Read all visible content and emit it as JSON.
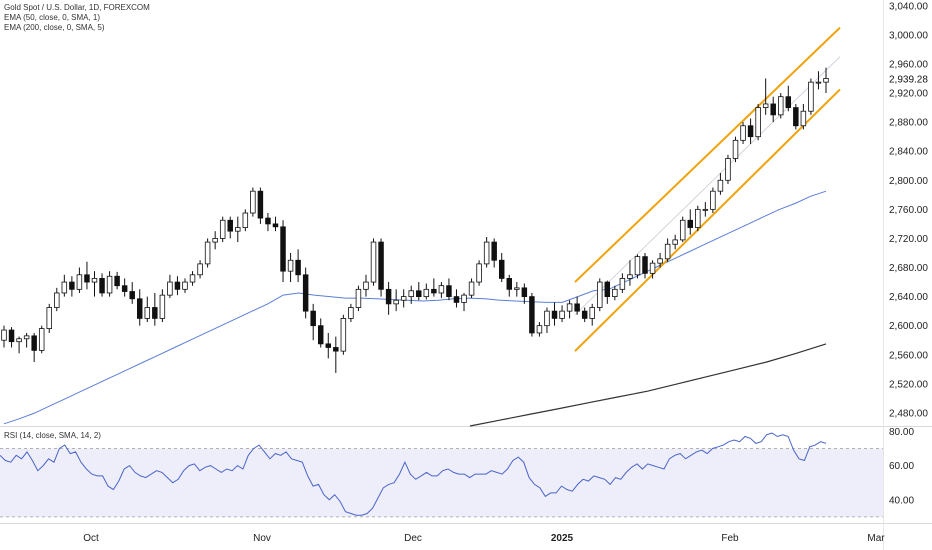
{
  "legend": {
    "main": "Gold Spot / U.S. Dollar, 1D, FOREXCOM",
    "ema50": "EMA (50, close, 0, SMA, 1)",
    "ema200": "EMA (200, close, 0, SMA, 5)",
    "rsi": "RSI (14, close, SMA, 14, 2)"
  },
  "colors": {
    "candle_up": "#ffffff",
    "candle_down": "#111111",
    "candle_outline": "#111111",
    "ema50": "#5b7fd6",
    "ema200": "#333333",
    "channel": "#f0a20a",
    "rsi_line": "#4a64c8",
    "rsi_band": "#eeeefb"
  },
  "chart_data": [
    {
      "type": "candlestick",
      "title": "Gold Spot / U.S. Dollar, 1D, FOREXCOM",
      "x_ticks": [
        "Oct",
        "Nov",
        "Dec",
        "2025",
        "Feb",
        "Mar"
      ],
      "y_ticks": [
        3040,
        3000,
        2960,
        2920,
        2880,
        2840,
        2800,
        2760,
        2720,
        2680,
        2640,
        2600,
        2560,
        2520,
        2480
      ],
      "ylim": [
        2462,
        3048
      ],
      "y_tick_labels": [
        "3,040.00",
        "3,000.00",
        "2,960.00",
        "2,920.00",
        "2,880.00",
        "2,840.00",
        "2,800.00",
        "2,760.00",
        "2,720.00",
        "2,680.00",
        "2,640.00",
        "2,600.00",
        "2,560.00",
        "2,520.00",
        "2,480.00"
      ],
      "last_price": 2939.28,
      "last_price_label": "2,939.28",
      "candles": [
        {
          "o": 2580,
          "h": 2600,
          "l": 2570,
          "c": 2594
        },
        {
          "o": 2594,
          "h": 2598,
          "l": 2570,
          "c": 2578
        },
        {
          "o": 2578,
          "h": 2585,
          "l": 2562,
          "c": 2582
        },
        {
          "o": 2582,
          "h": 2590,
          "l": 2570,
          "c": 2586
        },
        {
          "o": 2586,
          "h": 2590,
          "l": 2550,
          "c": 2566
        },
        {
          "o": 2566,
          "h": 2600,
          "l": 2562,
          "c": 2596
        },
        {
          "o": 2596,
          "h": 2630,
          "l": 2590,
          "c": 2625
        },
        {
          "o": 2625,
          "h": 2652,
          "l": 2620,
          "c": 2645
        },
        {
          "o": 2645,
          "h": 2670,
          "l": 2640,
          "c": 2660
        },
        {
          "o": 2660,
          "h": 2668,
          "l": 2640,
          "c": 2650
        },
        {
          "o": 2650,
          "h": 2680,
          "l": 2645,
          "c": 2670
        },
        {
          "o": 2670,
          "h": 2688,
          "l": 2650,
          "c": 2660
        },
        {
          "o": 2660,
          "h": 2675,
          "l": 2640,
          "c": 2665
        },
        {
          "o": 2665,
          "h": 2672,
          "l": 2640,
          "c": 2645
        },
        {
          "o": 2645,
          "h": 2675,
          "l": 2640,
          "c": 2668
        },
        {
          "o": 2668,
          "h": 2674,
          "l": 2650,
          "c": 2655
        },
        {
          "o": 2655,
          "h": 2665,
          "l": 2640,
          "c": 2647
        },
        {
          "o": 2647,
          "h": 2660,
          "l": 2630,
          "c": 2637
        },
        {
          "o": 2637,
          "h": 2650,
          "l": 2600,
          "c": 2610
        },
        {
          "o": 2610,
          "h": 2640,
          "l": 2605,
          "c": 2625
        },
        {
          "o": 2625,
          "h": 2645,
          "l": 2600,
          "c": 2610
        },
        {
          "o": 2610,
          "h": 2650,
          "l": 2605,
          "c": 2642
        },
        {
          "o": 2642,
          "h": 2670,
          "l": 2638,
          "c": 2660
        },
        {
          "o": 2660,
          "h": 2668,
          "l": 2642,
          "c": 2650
        },
        {
          "o": 2650,
          "h": 2665,
          "l": 2645,
          "c": 2660
        },
        {
          "o": 2660,
          "h": 2675,
          "l": 2655,
          "c": 2670
        },
        {
          "o": 2670,
          "h": 2690,
          "l": 2665,
          "c": 2685
        },
        {
          "o": 2685,
          "h": 2720,
          "l": 2680,
          "c": 2715
        },
        {
          "o": 2715,
          "h": 2730,
          "l": 2705,
          "c": 2720
        },
        {
          "o": 2720,
          "h": 2750,
          "l": 2715,
          "c": 2745
        },
        {
          "o": 2745,
          "h": 2750,
          "l": 2720,
          "c": 2730
        },
        {
          "o": 2730,
          "h": 2750,
          "l": 2715,
          "c": 2735
        },
        {
          "o": 2735,
          "h": 2760,
          "l": 2730,
          "c": 2755
        },
        {
          "o": 2755,
          "h": 2790,
          "l": 2750,
          "c": 2785
        },
        {
          "o": 2785,
          "h": 2790,
          "l": 2740,
          "c": 2748
        },
        {
          "o": 2748,
          "h": 2755,
          "l": 2730,
          "c": 2740
        },
        {
          "o": 2740,
          "h": 2750,
          "l": 2730,
          "c": 2736
        },
        {
          "o": 2736,
          "h": 2745,
          "l": 2660,
          "c": 2675
        },
        {
          "o": 2675,
          "h": 2700,
          "l": 2660,
          "c": 2690
        },
        {
          "o": 2690,
          "h": 2705,
          "l": 2660,
          "c": 2670
        },
        {
          "o": 2670,
          "h": 2680,
          "l": 2610,
          "c": 2620
        },
        {
          "o": 2620,
          "h": 2630,
          "l": 2580,
          "c": 2600
        },
        {
          "o": 2600,
          "h": 2610,
          "l": 2570,
          "c": 2575
        },
        {
          "o": 2575,
          "h": 2590,
          "l": 2555,
          "c": 2570
        },
        {
          "o": 2570,
          "h": 2585,
          "l": 2535,
          "c": 2565
        },
        {
          "o": 2565,
          "h": 2615,
          "l": 2560,
          "c": 2610
        },
        {
          "o": 2610,
          "h": 2630,
          "l": 2605,
          "c": 2625
        },
        {
          "o": 2625,
          "h": 2655,
          "l": 2620,
          "c": 2650
        },
        {
          "o": 2650,
          "h": 2670,
          "l": 2640,
          "c": 2660
        },
        {
          "o": 2660,
          "h": 2720,
          "l": 2655,
          "c": 2715
        },
        {
          "o": 2715,
          "h": 2720,
          "l": 2640,
          "c": 2650
        },
        {
          "o": 2650,
          "h": 2660,
          "l": 2615,
          "c": 2630
        },
        {
          "o": 2630,
          "h": 2650,
          "l": 2620,
          "c": 2635
        },
        {
          "o": 2635,
          "h": 2650,
          "l": 2625,
          "c": 2640
        },
        {
          "o": 2640,
          "h": 2655,
          "l": 2630,
          "c": 2648
        },
        {
          "o": 2648,
          "h": 2660,
          "l": 2635,
          "c": 2640
        },
        {
          "o": 2640,
          "h": 2658,
          "l": 2636,
          "c": 2650
        },
        {
          "o": 2650,
          "h": 2665,
          "l": 2640,
          "c": 2645
        },
        {
          "o": 2645,
          "h": 2660,
          "l": 2638,
          "c": 2655
        },
        {
          "o": 2655,
          "h": 2665,
          "l": 2635,
          "c": 2640
        },
        {
          "o": 2640,
          "h": 2650,
          "l": 2625,
          "c": 2632
        },
        {
          "o": 2632,
          "h": 2645,
          "l": 2620,
          "c": 2642
        },
        {
          "o": 2642,
          "h": 2665,
          "l": 2638,
          "c": 2660
        },
        {
          "o": 2660,
          "h": 2690,
          "l": 2655,
          "c": 2685
        },
        {
          "o": 2685,
          "h": 2722,
          "l": 2680,
          "c": 2715
        },
        {
          "o": 2715,
          "h": 2720,
          "l": 2680,
          "c": 2690
        },
        {
          "o": 2690,
          "h": 2700,
          "l": 2660,
          "c": 2665
        },
        {
          "o": 2665,
          "h": 2670,
          "l": 2640,
          "c": 2650
        },
        {
          "o": 2650,
          "h": 2660,
          "l": 2640,
          "c": 2652
        },
        {
          "o": 2652,
          "h": 2658,
          "l": 2630,
          "c": 2640
        },
        {
          "o": 2640,
          "h": 2645,
          "l": 2585,
          "c": 2590
        },
        {
          "o": 2590,
          "h": 2605,
          "l": 2585,
          "c": 2600
        },
        {
          "o": 2600,
          "h": 2625,
          "l": 2590,
          "c": 2620
        },
        {
          "o": 2620,
          "h": 2632,
          "l": 2600,
          "c": 2610
        },
        {
          "o": 2610,
          "h": 2628,
          "l": 2605,
          "c": 2620
        },
        {
          "o": 2620,
          "h": 2635,
          "l": 2610,
          "c": 2630
        },
        {
          "o": 2630,
          "h": 2640,
          "l": 2615,
          "c": 2620
        },
        {
          "o": 2620,
          "h": 2625,
          "l": 2605,
          "c": 2610
        },
        {
          "o": 2610,
          "h": 2630,
          "l": 2600,
          "c": 2625
        },
        {
          "o": 2625,
          "h": 2665,
          "l": 2620,
          "c": 2660
        },
        {
          "o": 2660,
          "h": 2662,
          "l": 2630,
          "c": 2640
        },
        {
          "o": 2640,
          "h": 2655,
          "l": 2635,
          "c": 2650
        },
        {
          "o": 2650,
          "h": 2672,
          "l": 2645,
          "c": 2665
        },
        {
          "o": 2665,
          "h": 2690,
          "l": 2655,
          "c": 2670
        },
        {
          "o": 2670,
          "h": 2698,
          "l": 2665,
          "c": 2695
        },
        {
          "o": 2695,
          "h": 2700,
          "l": 2665,
          "c": 2672
        },
        {
          "o": 2672,
          "h": 2690,
          "l": 2665,
          "c": 2686
        },
        {
          "o": 2686,
          "h": 2700,
          "l": 2680,
          "c": 2692
        },
        {
          "o": 2692,
          "h": 2720,
          "l": 2688,
          "c": 2712
        },
        {
          "o": 2712,
          "h": 2725,
          "l": 2705,
          "c": 2718
        },
        {
          "o": 2718,
          "h": 2750,
          "l": 2715,
          "c": 2745
        },
        {
          "o": 2745,
          "h": 2760,
          "l": 2725,
          "c": 2735
        },
        {
          "o": 2735,
          "h": 2765,
          "l": 2730,
          "c": 2760
        },
        {
          "o": 2760,
          "h": 2770,
          "l": 2750,
          "c": 2760
        },
        {
          "o": 2760,
          "h": 2790,
          "l": 2755,
          "c": 2785
        },
        {
          "o": 2785,
          "h": 2810,
          "l": 2780,
          "c": 2800
        },
        {
          "o": 2800,
          "h": 2835,
          "l": 2795,
          "c": 2830
        },
        {
          "o": 2830,
          "h": 2860,
          "l": 2825,
          "c": 2855
        },
        {
          "o": 2855,
          "h": 2880,
          "l": 2850,
          "c": 2875
        },
        {
          "o": 2875,
          "h": 2885,
          "l": 2850,
          "c": 2860
        },
        {
          "o": 2860,
          "h": 2905,
          "l": 2855,
          "c": 2900
        },
        {
          "o": 2900,
          "h": 2940,
          "l": 2890,
          "c": 2905
        },
        {
          "o": 2905,
          "h": 2915,
          "l": 2880,
          "c": 2890
        },
        {
          "o": 2890,
          "h": 2920,
          "l": 2885,
          "c": 2915
        },
        {
          "o": 2915,
          "h": 2930,
          "l": 2895,
          "c": 2900
        },
        {
          "o": 2900,
          "h": 2905,
          "l": 2870,
          "c": 2875
        },
        {
          "o": 2875,
          "h": 2905,
          "l": 2870,
          "c": 2895
        },
        {
          "o": 2895,
          "h": 2940,
          "l": 2890,
          "c": 2935
        },
        {
          "o": 2935,
          "h": 2950,
          "l": 2925,
          "c": 2935
        },
        {
          "o": 2935,
          "h": 2955,
          "l": 2920,
          "c": 2940
        }
      ],
      "ema50": [
        2465,
        2472,
        2480,
        2490,
        2500,
        2510,
        2520,
        2530,
        2540,
        2550,
        2560,
        2570,
        2580,
        2590,
        2600,
        2610,
        2620,
        2630,
        2642,
        2645,
        2642,
        2640,
        2638,
        2638,
        2637,
        2636,
        2635,
        2634,
        2635,
        2637,
        2638,
        2637,
        2635,
        2634,
        2633,
        2632,
        2632,
        2640,
        2648,
        2650,
        2660,
        2670,
        2680,
        2690,
        2700,
        2710,
        2720,
        2730,
        2740,
        2750,
        2760,
        2768,
        2778,
        2785
      ],
      "ema200": [
        2462,
        2470,
        2478,
        2486,
        2494,
        2502,
        2510,
        2520,
        2530,
        2540,
        2550,
        2562,
        2575
      ],
      "channel_upper": [
        [
          2575,
          2660
        ],
        [
          2990,
          3010
        ]
      ],
      "channel_lower": [
        [
          2575,
          2565
        ],
        [
          2990,
          2925
        ]
      ],
      "channel_mid": [
        [
          2575,
          2615
        ],
        [
          2990,
          2970
        ]
      ]
    },
    {
      "type": "line",
      "title": "RSI (14, close, SMA, 14, 2)",
      "y_ticks": [
        80,
        60,
        40
      ],
      "y_tick_labels": [
        "80.00",
        "60.00",
        "40.00"
      ],
      "ylim": [
        27,
        82
      ],
      "band": [
        30,
        70
      ],
      "values": [
        66,
        63,
        62,
        66,
        64,
        68,
        63,
        57,
        60,
        64,
        62,
        70,
        72,
        67,
        68,
        62,
        58,
        55,
        54,
        54,
        48,
        46,
        51,
        58,
        60,
        56,
        54,
        53,
        55,
        57,
        56,
        53,
        50,
        52,
        57,
        60,
        61,
        57,
        59,
        60,
        58,
        56,
        58,
        57,
        60,
        58,
        66,
        70,
        72,
        68,
        64,
        67,
        66,
        68,
        64,
        63,
        62,
        54,
        48,
        49,
        43,
        40,
        43,
        39,
        33,
        32,
        31,
        31,
        32,
        35,
        41,
        47,
        49,
        50,
        55,
        62,
        55,
        52,
        54,
        56,
        54,
        54,
        57,
        58,
        56,
        55,
        55,
        53,
        55,
        55,
        55,
        57,
        56,
        55,
        58,
        63,
        65,
        62,
        53,
        49,
        47,
        42,
        44,
        44,
        48,
        46,
        45,
        49,
        52,
        51,
        54,
        53,
        52,
        49,
        53,
        52,
        56,
        59,
        61,
        58,
        61,
        60,
        59,
        58,
        64,
        66,
        67,
        64,
        66,
        68,
        69,
        67,
        70,
        71,
        72,
        74,
        75,
        74,
        77,
        76,
        73,
        74,
        78,
        79,
        77,
        78,
        77,
        69,
        64,
        63,
        71,
        72,
        74,
        73
      ]
    }
  ]
}
